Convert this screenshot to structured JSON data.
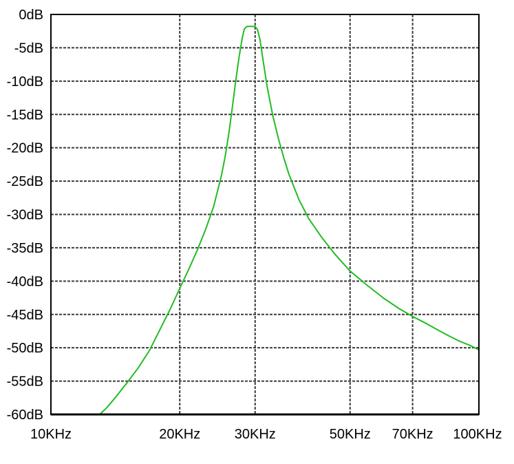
{
  "chart_data": {
    "type": "line",
    "x_scale": "log",
    "xlim": [
      10000,
      100000
    ],
    "ylim": [
      -60,
      0
    ],
    "grid": true,
    "x_ticks": [
      {
        "value": 10000,
        "label": "10KHz"
      },
      {
        "value": 20000,
        "label": "20KHz"
      },
      {
        "value": 30000,
        "label": "30KHz"
      },
      {
        "value": 50000,
        "label": "50KHz"
      },
      {
        "value": 70000,
        "label": "70KHz"
      },
      {
        "value": 100000,
        "label": "100KHz"
      }
    ],
    "y_ticks": [
      {
        "value": 0,
        "label": "0dB"
      },
      {
        "value": -5,
        "label": "-5dB"
      },
      {
        "value": -10,
        "label": "-10dB"
      },
      {
        "value": -15,
        "label": "-15dB"
      },
      {
        "value": -20,
        "label": "-20dB"
      },
      {
        "value": -25,
        "label": "-25dB"
      },
      {
        "value": -30,
        "label": "-30dB"
      },
      {
        "value": -35,
        "label": "-35dB"
      },
      {
        "value": -40,
        "label": "-40dB"
      },
      {
        "value": -45,
        "label": "-45dB"
      },
      {
        "value": -50,
        "label": "-50dB"
      },
      {
        "value": -55,
        "label": "-55dB"
      },
      {
        "value": -60,
        "label": "-60dB"
      }
    ],
    "series": [
      {
        "color": "#22bb22",
        "points": [
          [
            13000,
            -60
          ],
          [
            13500,
            -59
          ],
          [
            14000,
            -57.8
          ],
          [
            15000,
            -55.4
          ],
          [
            16000,
            -53
          ],
          [
            17000,
            -50.4
          ],
          [
            18000,
            -47.2
          ],
          [
            19000,
            -44.2
          ],
          [
            20000,
            -41.1
          ],
          [
            21000,
            -38.2
          ],
          [
            22000,
            -35.3
          ],
          [
            23000,
            -32.2
          ],
          [
            24000,
            -28.8
          ],
          [
            25000,
            -24.3
          ],
          [
            25500,
            -21.5
          ],
          [
            26000,
            -18.2
          ],
          [
            26500,
            -14.2
          ],
          [
            27000,
            -10.2
          ],
          [
            27500,
            -6.5
          ],
          [
            28000,
            -3.5
          ],
          [
            28300,
            -2.2
          ],
          [
            28700,
            -1.8
          ],
          [
            29500,
            -1.8
          ],
          [
            30000,
            -1.8
          ],
          [
            30400,
            -2.3
          ],
          [
            30800,
            -3.8
          ],
          [
            31300,
            -6.8
          ],
          [
            32000,
            -10.8
          ],
          [
            33000,
            -15.2
          ],
          [
            34000,
            -18.6
          ],
          [
            35000,
            -21.5
          ],
          [
            36000,
            -24
          ],
          [
            38000,
            -27.8
          ],
          [
            40000,
            -30.6
          ],
          [
            43000,
            -33.5
          ],
          [
            46000,
            -35.9
          ],
          [
            50000,
            -38.5
          ],
          [
            55000,
            -40.7
          ],
          [
            60000,
            -42.6
          ],
          [
            65000,
            -44.1
          ],
          [
            70000,
            -45.3
          ],
          [
            75000,
            -46.3
          ],
          [
            80000,
            -47.3
          ],
          [
            85000,
            -48.2
          ],
          [
            90000,
            -49
          ],
          [
            95000,
            -49.6
          ],
          [
            100000,
            -50.3
          ]
        ]
      }
    ]
  }
}
